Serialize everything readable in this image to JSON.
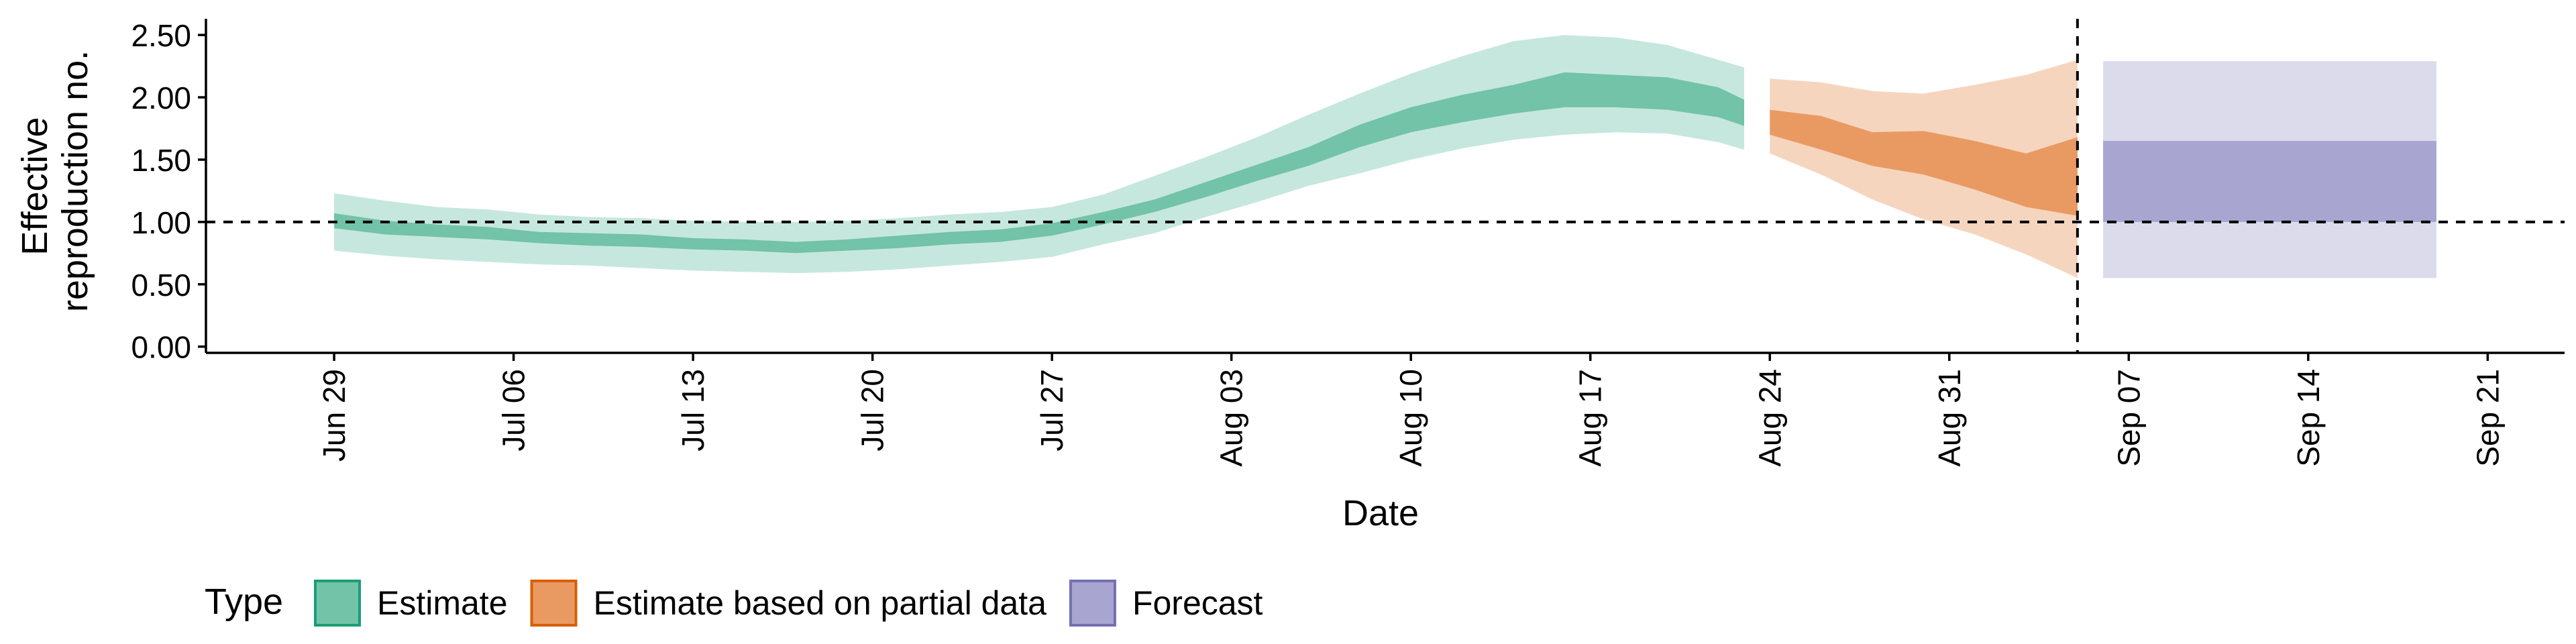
{
  "chart_data": {
    "type": "area",
    "xlabel": "Date",
    "ylabel_lines": [
      "Effective",
      "reproduction no."
    ],
    "x_range": [
      "2020-06-24",
      "2020-09-24"
    ],
    "ylim": [
      -0.05,
      2.63
    ],
    "yticks": [
      {
        "value": 0,
        "label": "0.00"
      },
      {
        "value": 0.5,
        "label": "0.50"
      },
      {
        "value": 1.0,
        "label": "1.00"
      },
      {
        "value": 1.5,
        "label": "1.50"
      },
      {
        "value": 2.0,
        "label": "2.00"
      },
      {
        "value": 2.5,
        "label": "2.50"
      }
    ],
    "xticks": [
      {
        "date": "2020-06-29",
        "label": "Jun 29"
      },
      {
        "date": "2020-07-06",
        "label": "Jul 06"
      },
      {
        "date": "2020-07-13",
        "label": "Jul 13"
      },
      {
        "date": "2020-07-20",
        "label": "Jul 20"
      },
      {
        "date": "2020-07-27",
        "label": "Jul 27"
      },
      {
        "date": "2020-08-03",
        "label": "Aug 03"
      },
      {
        "date": "2020-08-10",
        "label": "Aug 10"
      },
      {
        "date": "2020-08-17",
        "label": "Aug 17"
      },
      {
        "date": "2020-08-24",
        "label": "Aug 24"
      },
      {
        "date": "2020-08-31",
        "label": "Aug 31"
      },
      {
        "date": "2020-09-07",
        "label": "Sep 07"
      },
      {
        "date": "2020-09-14",
        "label": "Sep 14"
      },
      {
        "date": "2020-09-21",
        "label": "Sep 21"
      }
    ],
    "reference_line_y": 1.0,
    "reference_line_date": "2020-09-05",
    "series": [
      {
        "name": "Estimate",
        "color_outer": "#c6e7de",
        "color_inner": "#72c3a8",
        "dates": [
          "2020-06-29",
          "2020-07-01",
          "2020-07-03",
          "2020-07-05",
          "2020-07-07",
          "2020-07-09",
          "2020-07-11",
          "2020-07-13",
          "2020-07-15",
          "2020-07-17",
          "2020-07-19",
          "2020-07-21",
          "2020-07-23",
          "2020-07-25",
          "2020-07-27",
          "2020-07-29",
          "2020-07-31",
          "2020-08-02",
          "2020-08-04",
          "2020-08-06",
          "2020-08-08",
          "2020-08-10",
          "2020-08-12",
          "2020-08-14",
          "2020-08-16",
          "2020-08-18",
          "2020-08-20",
          "2020-08-22",
          "2020-08-23"
        ],
        "outer_upper": [
          1.23,
          1.17,
          1.12,
          1.1,
          1.06,
          1.04,
          1.03,
          1.01,
          1.0,
          1.0,
          1.01,
          1.03,
          1.06,
          1.08,
          1.12,
          1.22,
          1.37,
          1.52,
          1.68,
          1.86,
          2.03,
          2.19,
          2.33,
          2.45,
          2.5,
          2.48,
          2.42,
          2.3,
          2.24
        ],
        "inner_upper": [
          1.07,
          1.01,
          0.98,
          0.96,
          0.92,
          0.91,
          0.9,
          0.87,
          0.86,
          0.84,
          0.86,
          0.89,
          0.92,
          0.94,
          0.99,
          1.08,
          1.18,
          1.32,
          1.46,
          1.6,
          1.78,
          1.92,
          2.02,
          2.1,
          2.2,
          2.18,
          2.16,
          2.08,
          1.98
        ],
        "inner_lower": [
          0.95,
          0.9,
          0.88,
          0.86,
          0.83,
          0.81,
          0.8,
          0.78,
          0.77,
          0.75,
          0.77,
          0.79,
          0.82,
          0.84,
          0.89,
          0.98,
          1.08,
          1.2,
          1.33,
          1.45,
          1.6,
          1.72,
          1.8,
          1.87,
          1.92,
          1.92,
          1.9,
          1.84,
          1.77
        ],
        "outer_lower": [
          0.77,
          0.73,
          0.7,
          0.68,
          0.66,
          0.65,
          0.63,
          0.61,
          0.6,
          0.59,
          0.6,
          0.62,
          0.65,
          0.68,
          0.72,
          0.82,
          0.91,
          1.04,
          1.16,
          1.29,
          1.39,
          1.5,
          1.59,
          1.66,
          1.7,
          1.72,
          1.71,
          1.64,
          1.58
        ]
      },
      {
        "name": "Estimate based on partial data",
        "color_outer": "#f6d5bf",
        "color_inner": "#e99a62",
        "dates": [
          "2020-08-24",
          "2020-08-26",
          "2020-08-28",
          "2020-08-30",
          "2020-09-01",
          "2020-09-03",
          "2020-09-05"
        ],
        "outer_upper": [
          2.15,
          2.12,
          2.05,
          2.03,
          2.1,
          2.18,
          2.3
        ],
        "inner_upper": [
          1.9,
          1.85,
          1.72,
          1.73,
          1.65,
          1.55,
          1.68
        ],
        "inner_lower": [
          1.7,
          1.58,
          1.45,
          1.38,
          1.26,
          1.12,
          1.05
        ],
        "outer_lower": [
          1.55,
          1.38,
          1.18,
          1.02,
          0.9,
          0.74,
          0.55
        ]
      },
      {
        "name": "Forecast",
        "color_outer": "#dbdbec",
        "color_inner": "#a8a5d1",
        "dates": [
          "2020-09-06",
          "2020-09-19"
        ],
        "outer_upper": [
          2.29,
          2.29
        ],
        "inner_upper": [
          1.65,
          1.65
        ],
        "inner_lower": [
          1.0,
          1.0
        ],
        "outer_lower": [
          0.55,
          0.55
        ]
      }
    ],
    "legend": {
      "title": "Type",
      "position": "bottom-left",
      "items": [
        {
          "label": "Estimate",
          "fill": "#72c3a8",
          "border": "#1b9e77"
        },
        {
          "label": "Estimate based on partial data",
          "fill": "#e99a62",
          "border": "#d95f02"
        },
        {
          "label": "Forecast",
          "fill": "#a8a5d1",
          "border": "#7570b3"
        }
      ]
    }
  }
}
